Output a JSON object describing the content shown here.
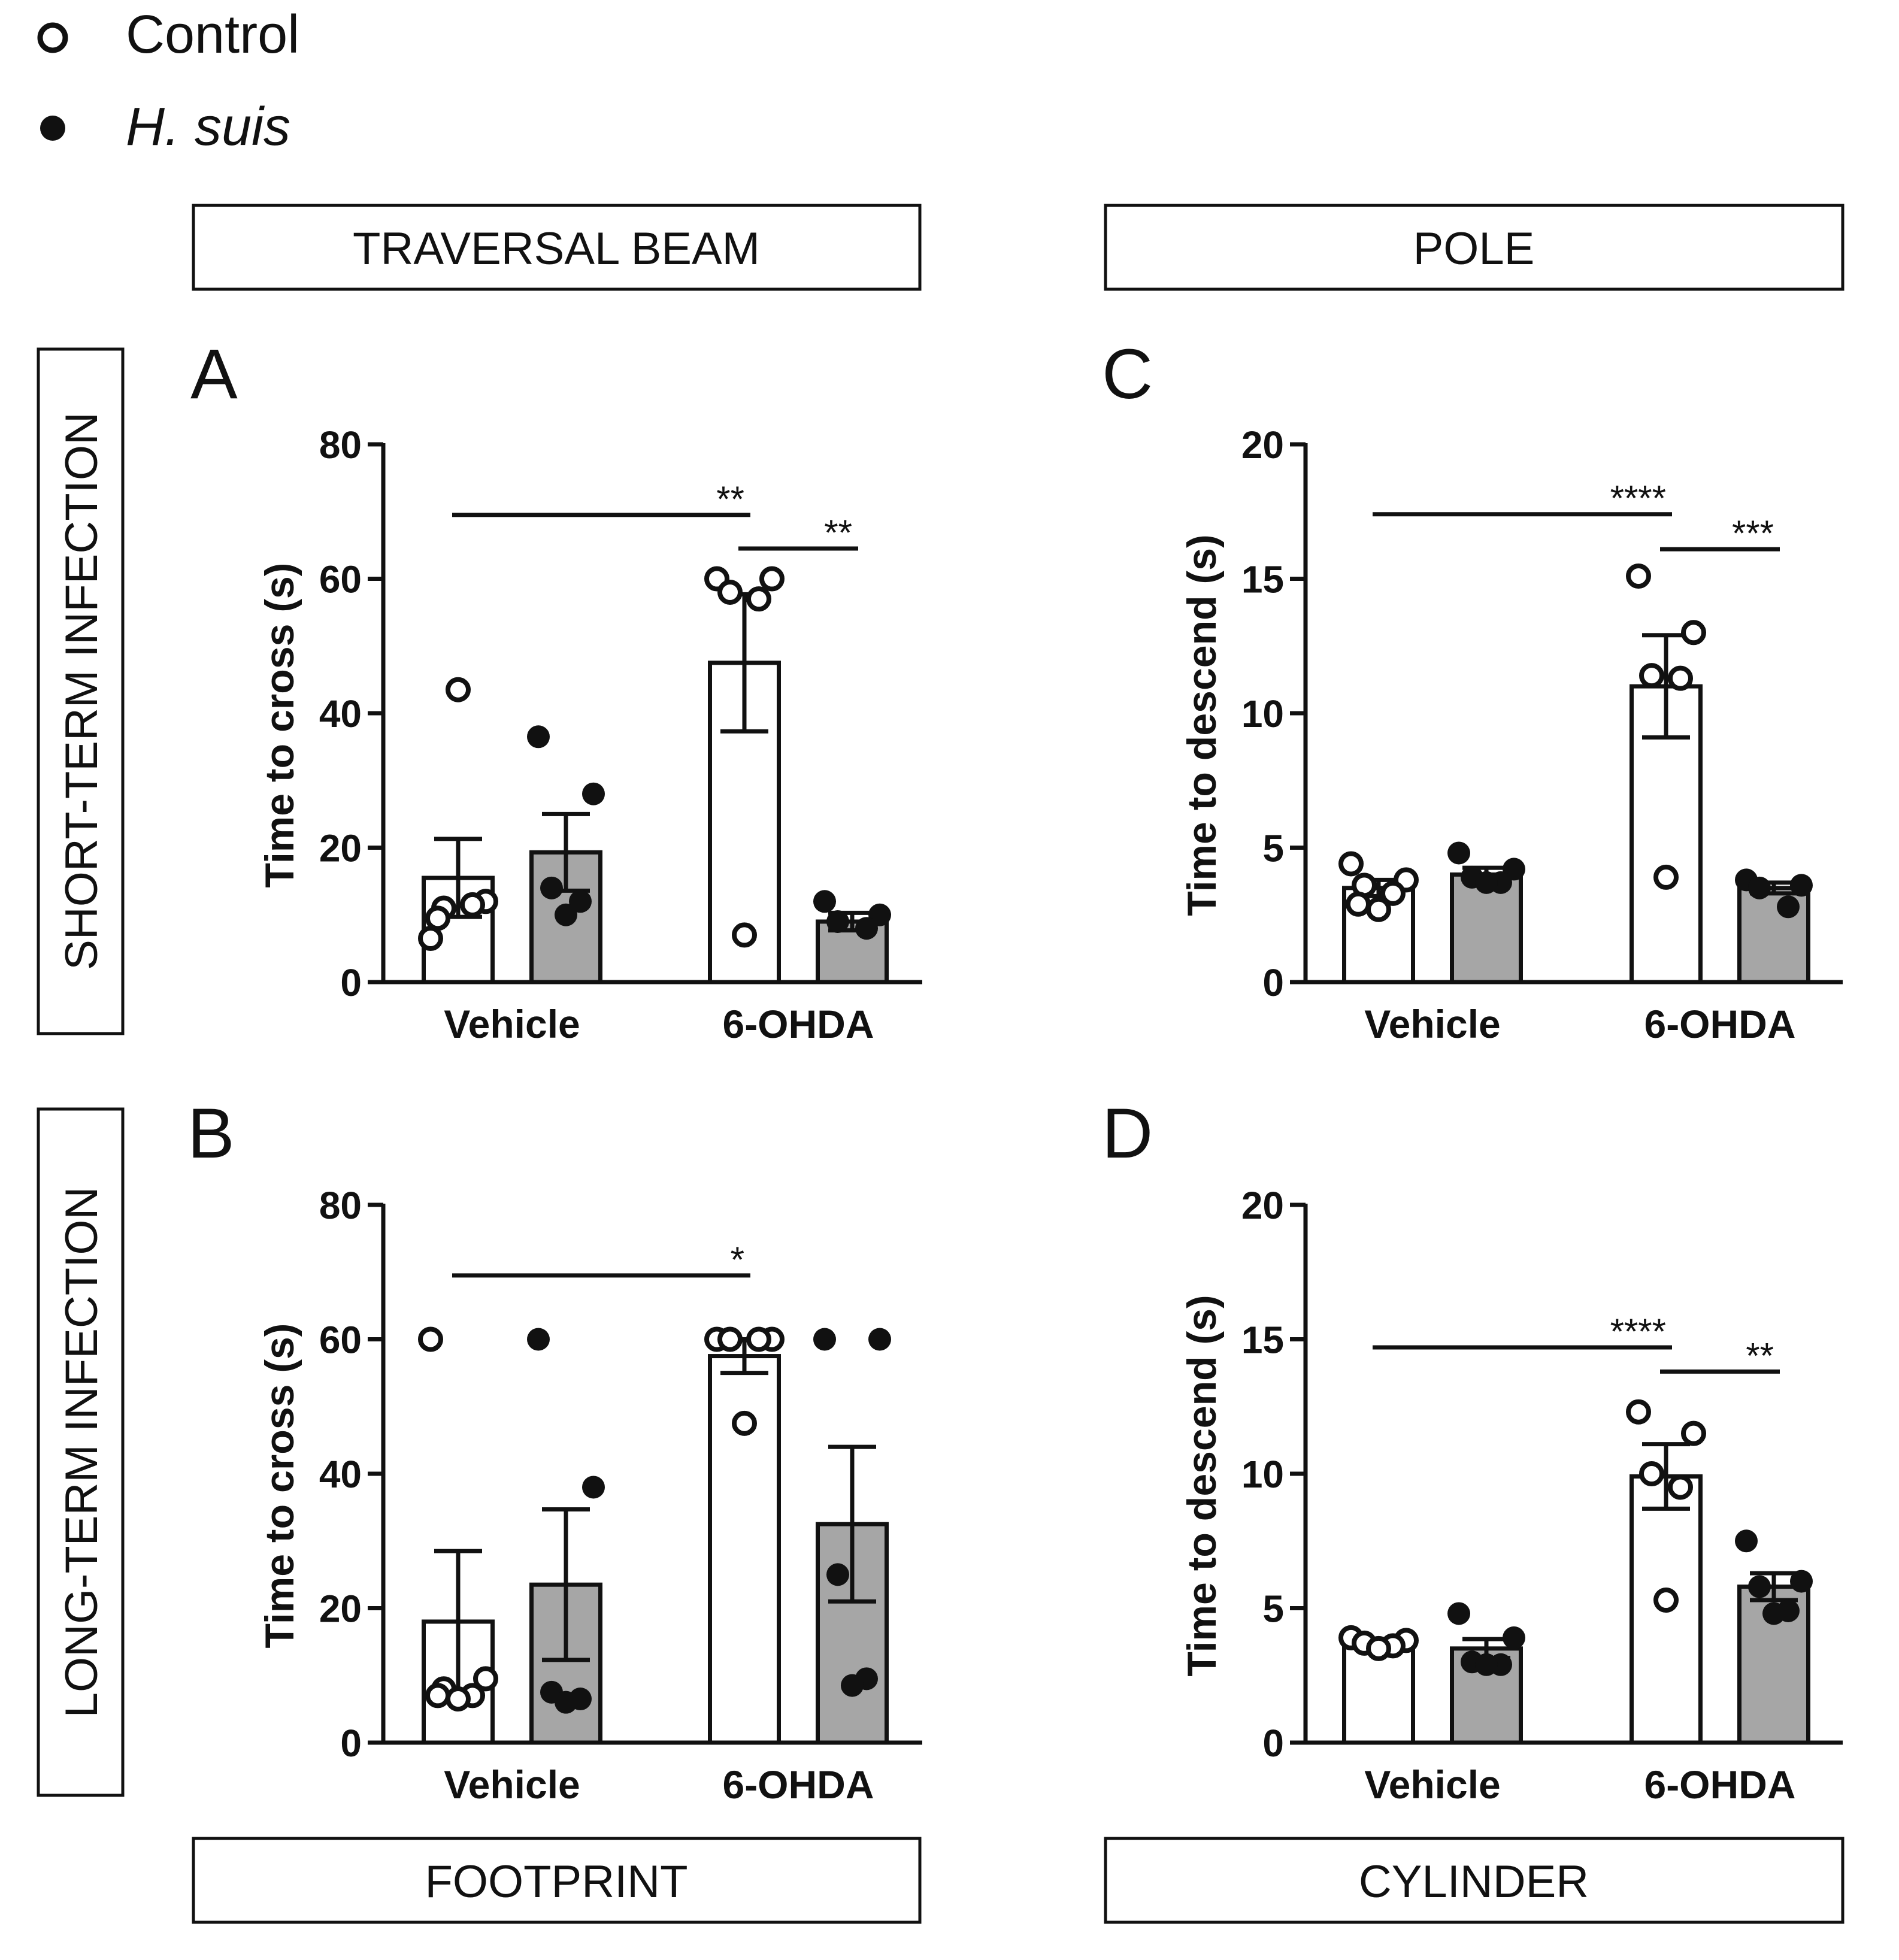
{
  "legend": {
    "items": [
      {
        "label": "Control",
        "style": "open"
      },
      {
        "label": "H. suis",
        "style": "filled",
        "italic": true
      }
    ]
  },
  "headers": {
    "traversal_beam": "TRAVERSAL BEAM",
    "pole": "POLE",
    "footprint": "FOOTPRINT",
    "cylinder": "CYLINDER"
  },
  "rows": {
    "short_term": "SHORT-TERM INFECTION",
    "long_term": "LONG-TERM INFECTION"
  },
  "colors": {
    "control_fill": "#ffffff",
    "hsuis_fill": "#a6a6a6",
    "ink": "#111111"
  },
  "chart_data": [
    {
      "panel": "A",
      "type": "bar",
      "ylabel": "Time to cross (s)",
      "ylim": [
        0,
        80
      ],
      "yticks": [
        0,
        20,
        40,
        60,
        80
      ],
      "categories": [
        "Vehicle",
        "6-OHDA"
      ],
      "series": [
        {
          "name": "Control",
          "means": [
            15.5,
            47.5
          ],
          "sem": [
            5.8,
            10.2
          ],
          "points": [
            [
              6.5,
              12,
              11,
              11.5,
              43.5,
              9.5
            ],
            [
              60,
              60,
              58,
              57,
              7
            ]
          ]
        },
        {
          "name": "H. suis",
          "means": [
            19.3,
            9.0
          ],
          "sem": [
            5.7,
            1.3
          ],
          "points": [
            [
              36.5,
              28,
              14,
              12,
              10
            ],
            [
              12,
              10,
              9,
              8
            ]
          ]
        }
      ],
      "significance": [
        {
          "from": [
            0,
            0
          ],
          "to": [
            1,
            0
          ],
          "label": "**",
          "y": 69.5
        },
        {
          "from": [
            1,
            0
          ],
          "to": [
            1,
            1
          ],
          "label": "**",
          "y": 64.5
        }
      ]
    },
    {
      "panel": "B",
      "type": "bar",
      "ylabel": "Time to cross (s)",
      "ylim": [
        0,
        80
      ],
      "yticks": [
        0,
        20,
        40,
        60,
        80
      ],
      "categories": [
        "Vehicle",
        "6-OHDA"
      ],
      "series": [
        {
          "name": "Control",
          "means": [
            18,
            57.5
          ],
          "sem": [
            10.5,
            2.5
          ],
          "points": [
            [
              60,
              9.5,
              8,
              7,
              6.5,
              7
            ],
            [
              60,
              60,
              60,
              60,
              47.5
            ]
          ]
        },
        {
          "name": "H. suis",
          "means": [
            23.5,
            32.5
          ],
          "sem": [
            11.2,
            11.5
          ],
          "points": [
            [
              60,
              38,
              7.5,
              6.5,
              6
            ],
            [
              60,
              60,
              25,
              9.5,
              8.5
            ]
          ]
        }
      ],
      "significance": [
        {
          "from": [
            0,
            0
          ],
          "to": [
            1,
            0
          ],
          "label": "*",
          "y": 69.5
        }
      ]
    },
    {
      "panel": "C",
      "type": "bar",
      "ylabel": "Time to descend (s)",
      "ylim": [
        0,
        20
      ],
      "yticks": [
        0,
        5,
        10,
        15,
        20
      ],
      "categories": [
        "Vehicle",
        "6-OHDA"
      ],
      "series": [
        {
          "name": "Control",
          "means": [
            3.5,
            11.0
          ],
          "sem": [
            0.3,
            1.9
          ],
          "points": [
            [
              4.4,
              3.8,
              3.6,
              3.3,
              2.7,
              2.9
            ],
            [
              15.1,
              13.0,
              11.4,
              11.3,
              3.9
            ]
          ]
        },
        {
          "name": "H. suis",
          "means": [
            4.0,
            3.5
          ],
          "sem": [
            0.25,
            0.2
          ],
          "points": [
            [
              4.8,
              4.2,
              3.9,
              3.7,
              3.7
            ],
            [
              3.8,
              3.6,
              3.5,
              2.8
            ]
          ]
        }
      ],
      "significance": [
        {
          "from": [
            0,
            0
          ],
          "to": [
            1,
            0
          ],
          "label": "****",
          "y": 17.4
        },
        {
          "from": [
            1,
            0
          ],
          "to": [
            1,
            1
          ],
          "label": "***",
          "y": 16.1
        }
      ]
    },
    {
      "panel": "D",
      "type": "bar",
      "ylabel": "Time to descend (s)",
      "ylim": [
        0,
        20
      ],
      "yticks": [
        0,
        5,
        10,
        15,
        20
      ],
      "categories": [
        "Vehicle",
        "6-OHDA"
      ],
      "series": [
        {
          "name": "Control",
          "means": [
            3.7,
            9.9
          ],
          "sem": [
            0.1,
            1.2
          ],
          "points": [
            [
              3.9,
              3.8,
              3.7,
              3.6,
              3.5
            ],
            [
              12.3,
              11.5,
              10.0,
              9.5,
              5.3
            ]
          ]
        },
        {
          "name": "H. suis",
          "means": [
            3.5,
            5.8
          ],
          "sem": [
            0.35,
            0.5
          ],
          "points": [
            [
              4.8,
              3.9,
              3.0,
              2.9,
              2.9
            ],
            [
              7.5,
              6.0,
              5.8,
              4.9,
              4.8
            ]
          ]
        }
      ],
      "significance": [
        {
          "from": [
            0,
            0
          ],
          "to": [
            1,
            0
          ],
          "label": "****",
          "y": 14.7
        },
        {
          "from": [
            1,
            0
          ],
          "to": [
            1,
            1
          ],
          "label": "**",
          "y": 13.8
        }
      ]
    }
  ]
}
